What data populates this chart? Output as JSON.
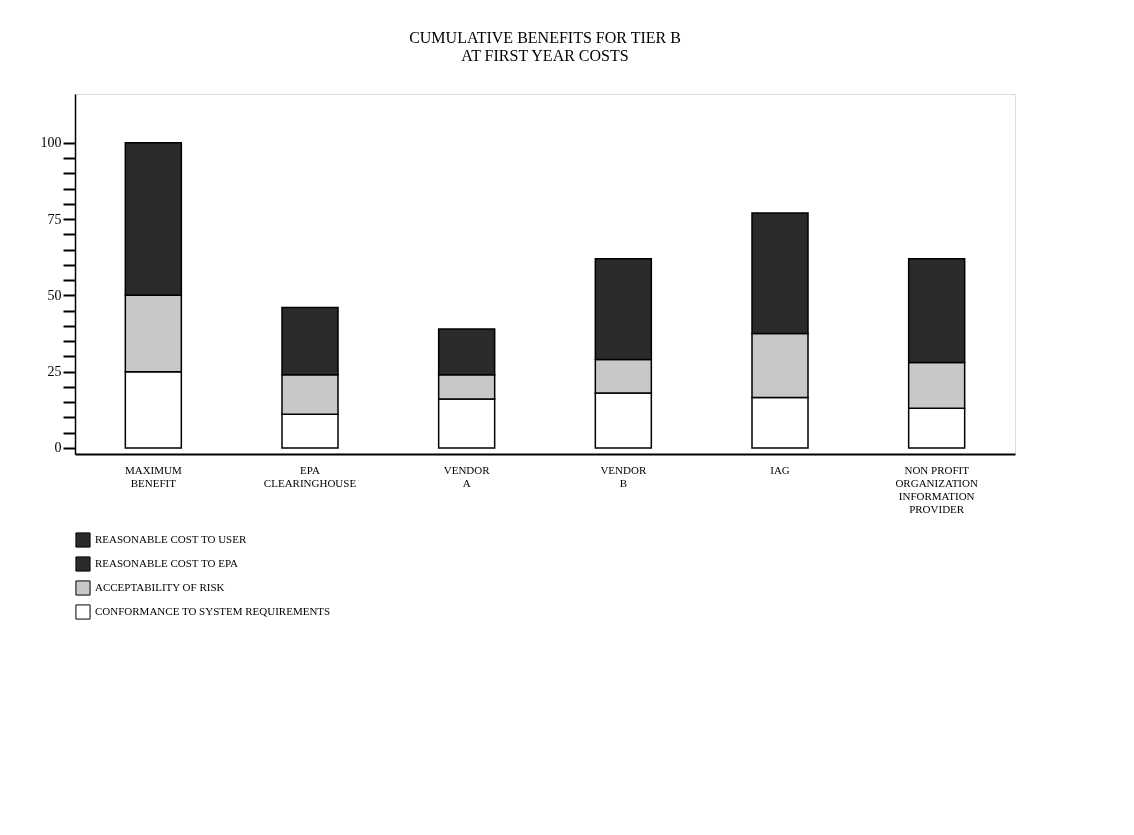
{
  "chart_data": {
    "type": "bar",
    "title": "CUMULATIVE BENEFITS FOR TIER B\nAT FIRST YEAR COSTS",
    "stacked": true,
    "categories": [
      "MAXIMUM\nBENEFIT",
      "EPA\nCLEARINGHOUSE",
      "VENDOR\nA",
      "VENDOR\nB",
      "IAG",
      "NON PROFIT\nORGANIZATION\nINFORMATION\nPROVIDER"
    ],
    "series": [
      {
        "name": "CONFORMANCE TO SYSTEM REQUIREMENTS",
        "color": "#ffffff",
        "values": [
          25,
          11,
          16,
          18,
          16.5,
          13
        ]
      },
      {
        "name": "ACCEPTABILITY OF RISK",
        "color": "#c8c8c8",
        "values": [
          25,
          13,
          8,
          11,
          21,
          15
        ]
      },
      {
        "name": "REASONABLE COST TO EPA",
        "color": "#2b2b2b",
        "values": [
          50,
          22,
          15,
          33,
          39.5,
          34
        ]
      },
      {
        "name": "REASONABLE COST TO USER",
        "color": "#2b2b2b",
        "values": [
          null,
          null,
          null,
          null,
          null,
          null
        ]
      }
    ],
    "ylim": [
      -2,
      116
    ],
    "yticks": [
      0,
      {
        "value": 5,
        "label": null
      },
      {
        "value": 10,
        "label": null
      },
      {
        "value": 15,
        "label": null
      },
      {
        "value": 20,
        "label": null
      },
      25,
      {
        "value": 30,
        "label": null
      },
      {
        "value": 35,
        "label": null
      },
      {
        "value": 40,
        "label": null
      },
      {
        "value": 45,
        "label": null
      },
      50,
      {
        "value": 55,
        "label": null
      },
      {
        "value": 60,
        "label": null
      },
      {
        "value": 65,
        "label": null
      },
      {
        "value": 70,
        "label": null
      },
      75,
      {
        "value": 80,
        "label": null
      },
      {
        "value": 85,
        "label": null
      },
      {
        "value": 90,
        "label": null
      },
      {
        "value": 95,
        "label": null
      },
      100
    ],
    "grid": false,
    "legend": "bottom left"
  }
}
